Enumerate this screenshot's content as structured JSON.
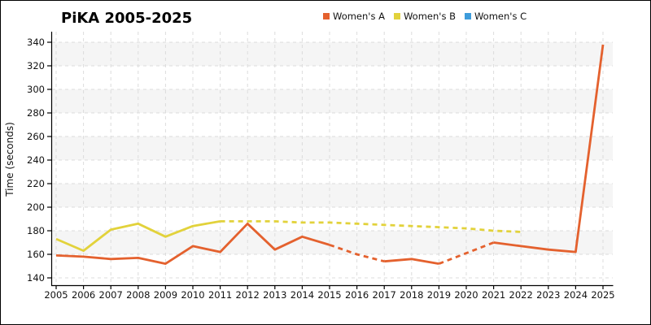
{
  "title": "PiKA 2005-2025",
  "y_axis_label": "Time (seconds)",
  "colors": {
    "womens_a": "#E4612E",
    "womens_b": "#E2D23B",
    "womens_c": "#3E9CDB",
    "band": "#f5f5f5",
    "gridline": "#dcdcdc",
    "axis": "#000000",
    "tick_text": "#111111"
  },
  "chart_data": {
    "type": "line",
    "title": "PiKA 2005-2025",
    "xlabel": "",
    "ylabel": "Time (seconds)",
    "ylim": [
      140,
      340
    ],
    "yticks": [
      140,
      160,
      180,
      200,
      220,
      240,
      260,
      280,
      300,
      320,
      340
    ],
    "x": [
      2005,
      2006,
      2007,
      2008,
      2009,
      2010,
      2011,
      2012,
      2013,
      2014,
      2015,
      2016,
      2017,
      2018,
      2019,
      2020,
      2021,
      2022,
      2023,
      2024,
      2025
    ],
    "grid": true,
    "background_bands": [
      [
        160,
        180
      ],
      [
        200,
        220
      ],
      [
        240,
        260
      ],
      [
        280,
        300
      ],
      [
        320,
        340
      ]
    ],
    "legend_position": "top-center",
    "series": [
      {
        "name": "Women's A",
        "color": "#E4612E",
        "values": [
          159,
          158,
          156,
          157,
          152,
          167,
          162,
          186,
          164,
          175,
          168,
          160,
          154,
          156,
          152,
          161,
          170,
          167,
          164,
          162,
          338
        ],
        "segments": [
          {
            "start": 2005,
            "end": 2015,
            "style": "solid"
          },
          {
            "start": 2015,
            "end": 2017,
            "style": "dashed"
          },
          {
            "start": 2017,
            "end": 2019,
            "style": "solid"
          },
          {
            "start": 2019,
            "end": 2021,
            "style": "dashed"
          },
          {
            "start": 2021,
            "end": 2025,
            "style": "solid"
          }
        ]
      },
      {
        "name": "Women's B",
        "color": "#E2D23B",
        "values": [
          173,
          163,
          181,
          186,
          175,
          184,
          188,
          188,
          188,
          187,
          187,
          186,
          185,
          184,
          183,
          182,
          180,
          179,
          null,
          null,
          null
        ],
        "segments": [
          {
            "start": 2005,
            "end": 2011,
            "style": "solid"
          },
          {
            "start": 2011,
            "end": 2022,
            "style": "dashed"
          }
        ]
      },
      {
        "name": "Women's C",
        "color": "#3E9CDB",
        "values": [
          null,
          null,
          null,
          null,
          null,
          null,
          null,
          null,
          null,
          null,
          null,
          null,
          null,
          null,
          null,
          null,
          null,
          null,
          null,
          null,
          null
        ],
        "segments": []
      }
    ]
  }
}
